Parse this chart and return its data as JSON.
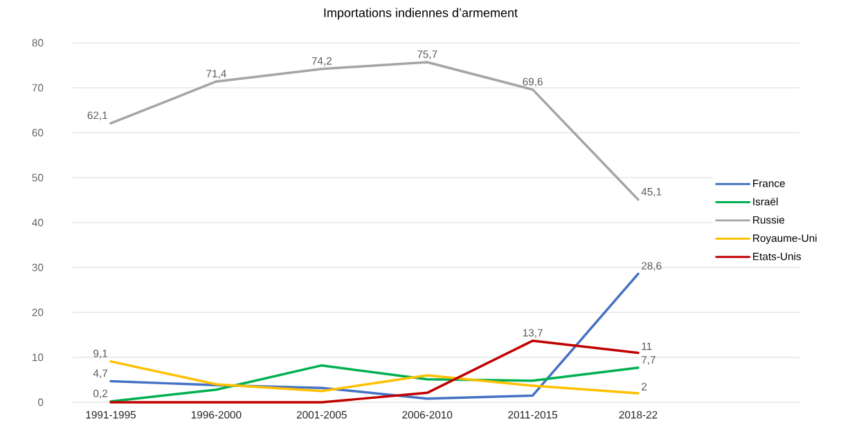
{
  "chart_data": {
    "type": "line",
    "title": "Importations indiennes d’armement",
    "categories": [
      "1991-1995",
      "1996-2000",
      "2001-2005",
      "2006-2010",
      "2011-2015",
      "2018-22"
    ],
    "series": [
      {
        "name": "France",
        "color": "#4472c4",
        "values": [
          4.7,
          3.8,
          3.2,
          0.8,
          1.5,
          28.6
        ],
        "value_labels": [
          "4,7",
          null,
          null,
          null,
          null,
          "28,6"
        ]
      },
      {
        "name": "Israël",
        "color": "#00b050",
        "values": [
          0.2,
          2.8,
          8.2,
          5.1,
          4.8,
          7.7
        ],
        "value_labels": [
          "0,2",
          null,
          null,
          null,
          null,
          "7,7"
        ]
      },
      {
        "name": "Russie",
        "color": "#a5a5a5",
        "values": [
          62.1,
          71.4,
          74.2,
          75.7,
          69.6,
          45.1
        ],
        "value_labels": [
          "62,1",
          "71,4",
          "74,2",
          "75,7",
          "69,6",
          "45,1"
        ]
      },
      {
        "name": "Royaume-Uni",
        "color": "#ffc000",
        "values": [
          9.1,
          4.0,
          2.5,
          6.0,
          3.7,
          2
        ],
        "value_labels": [
          "9,1",
          null,
          null,
          null,
          null,
          "2"
        ]
      },
      {
        "name": "Etats-Unis",
        "color": "#c00000",
        "values": [
          0,
          0,
          0,
          2.1,
          13.7,
          11
        ],
        "value_labels": [
          null,
          null,
          null,
          null,
          "13,7",
          "11"
        ]
      }
    ],
    "ylim": [
      0,
      80
    ],
    "yticks": [
      0,
      10,
      20,
      30,
      40,
      50,
      60,
      70,
      80
    ],
    "grid": "y",
    "legend": "right",
    "marker": "none",
    "line_style": "solid"
  }
}
